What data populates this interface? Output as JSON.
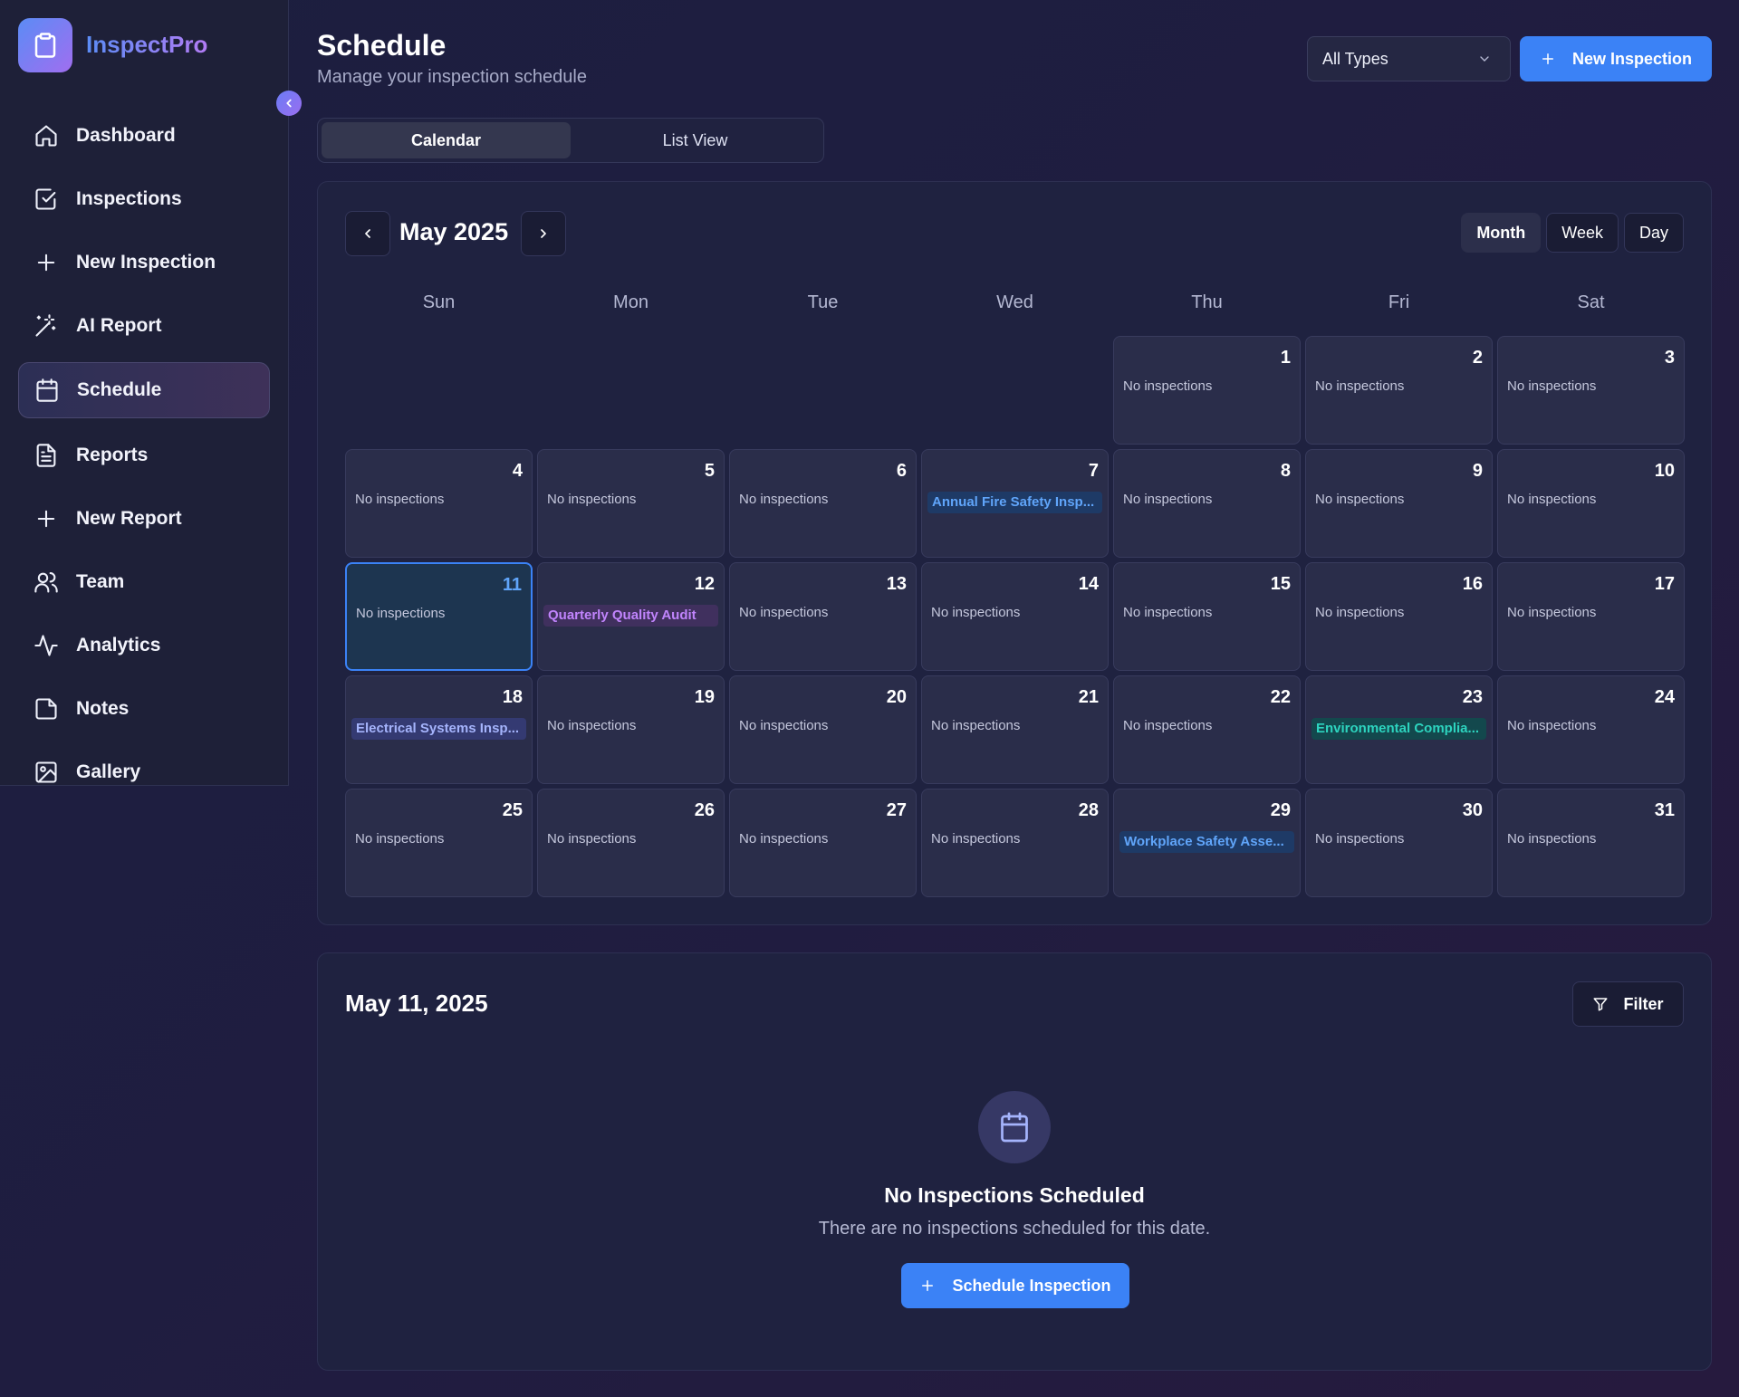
{
  "app": {
    "name": "InspectPro"
  },
  "sidebar": {
    "items": [
      {
        "label": "Dashboard",
        "icon": "home-icon"
      },
      {
        "label": "Inspections",
        "icon": "checkbox-icon"
      },
      {
        "label": "New Inspection",
        "icon": "plus-icon"
      },
      {
        "label": "AI Report",
        "icon": "magic-wand-icon"
      },
      {
        "label": "Schedule",
        "icon": "calendar-icon",
        "active": true
      },
      {
        "label": "Reports",
        "icon": "document-icon"
      },
      {
        "label": "New Report",
        "icon": "plus-icon"
      },
      {
        "label": "Team",
        "icon": "users-icon"
      },
      {
        "label": "Analytics",
        "icon": "activity-icon"
      },
      {
        "label": "Notes",
        "icon": "note-icon"
      },
      {
        "label": "Gallery",
        "icon": "image-icon"
      }
    ]
  },
  "header": {
    "title": "Schedule",
    "subtitle": "Manage your inspection schedule",
    "type_filter": "All Types",
    "new_button": "New Inspection"
  },
  "view_toggle": {
    "calendar": "Calendar",
    "list": "List View"
  },
  "calendar": {
    "month_label": "May 2025",
    "range_tabs": [
      "Month",
      "Week",
      "Day"
    ],
    "active_range": "Month",
    "weekdays": [
      "Sun",
      "Mon",
      "Tue",
      "Wed",
      "Thu",
      "Fri",
      "Sat"
    ],
    "first_weekday_index": 4,
    "days_in_month": 31,
    "selected_day": 11,
    "empty_text": "No inspections",
    "events": [
      {
        "day": 7,
        "title": "Annual Fire Safety Insp...",
        "color": "#60a5fa",
        "bg": "#1e3a66"
      },
      {
        "day": 12,
        "title": "Quarterly Quality Audit",
        "color": "#c084fc",
        "bg": "#40305e"
      },
      {
        "day": 18,
        "title": "Electrical Systems Insp...",
        "color": "#a5b4fc",
        "bg": "#343a72"
      },
      {
        "day": 23,
        "title": "Environmental Complia...",
        "color": "#2dd4bf",
        "bg": "#13484d"
      },
      {
        "day": 29,
        "title": "Workplace Safety Asse...",
        "color": "#60a5fa",
        "bg": "#1e3a66"
      }
    ]
  },
  "detail": {
    "date_label": "May 11, 2025",
    "filter_label": "Filter",
    "empty_title": "No Inspections Scheduled",
    "empty_subtitle": "There are no inspections scheduled for this date.",
    "schedule_button": "Schedule Inspection"
  },
  "colors": {
    "accent": "#3b82f6",
    "today_border": "#3b82f6"
  }
}
